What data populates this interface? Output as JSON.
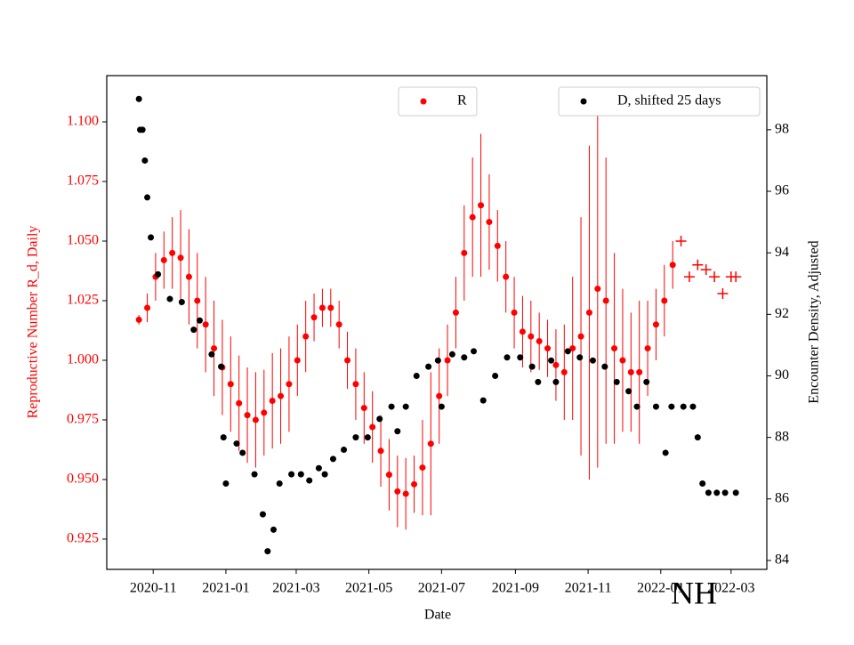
{
  "chart_data": {
    "type": "errorbar",
    "xlabel": "Date",
    "ylabel": "Reproductive Number R_d, Daily",
    "y2label": "Encounter Density, Adjusted",
    "annotation": "NH",
    "xlim": [
      "2020-09-23",
      "2022-03-31"
    ],
    "xticks": [
      {
        "value": "2020-11-01",
        "label": "2020-11"
      },
      {
        "value": "2021-01-01",
        "label": "2021-01"
      },
      {
        "value": "2021-03-01",
        "label": "2021-03"
      },
      {
        "value": "2021-05-01",
        "label": "2021-05"
      },
      {
        "value": "2021-07-01",
        "label": "2021-07"
      },
      {
        "value": "2021-09-01",
        "label": "2021-09"
      },
      {
        "value": "2021-11-01",
        "label": "2021-11"
      },
      {
        "value": "2022-01-01",
        "label": "2022-01"
      },
      {
        "value": "2022-03-01",
        "label": "2022-03"
      }
    ],
    "ylim": [
      0.9123,
      1.1194
    ],
    "yticks": [
      {
        "value": 0.925,
        "label": "0.925"
      },
      {
        "value": 0.95,
        "label": "0.950"
      },
      {
        "value": 0.975,
        "label": "0.975"
      },
      {
        "value": 1.0,
        "label": "1.000"
      },
      {
        "value": 1.025,
        "label": "1.025"
      },
      {
        "value": 1.05,
        "label": "1.050"
      },
      {
        "value": 1.075,
        "label": "1.075"
      },
      {
        "value": 1.1,
        "label": "1.100"
      }
    ],
    "y2lim": [
      83.71,
      99.76
    ],
    "y2ticks": [
      84,
      86,
      88,
      90,
      92,
      94,
      96,
      98
    ],
    "series": [
      {
        "name": "R",
        "color": "#ff0000",
        "marker": "dot",
        "x": [
          "2020-10-20",
          "2020-10-27",
          "2020-11-03",
          "2020-11-10",
          "2020-11-17",
          "2020-11-24",
          "2020-12-01",
          "2020-12-08",
          "2020-12-15",
          "2020-12-22",
          "2020-12-29",
          "2021-01-05",
          "2021-01-12",
          "2021-01-19",
          "2021-01-26",
          "2021-02-02",
          "2021-02-09",
          "2021-02-16",
          "2021-02-23",
          "2021-03-02",
          "2021-03-09",
          "2021-03-16",
          "2021-03-23",
          "2021-03-30",
          "2021-04-06",
          "2021-04-13",
          "2021-04-20",
          "2021-04-27",
          "2021-05-04",
          "2021-05-11",
          "2021-05-18",
          "2021-05-25",
          "2021-06-01",
          "2021-06-08",
          "2021-06-15",
          "2021-06-22",
          "2021-06-29",
          "2021-07-06",
          "2021-07-13",
          "2021-07-20",
          "2021-07-27",
          "2021-08-03",
          "2021-08-10",
          "2021-08-17",
          "2021-08-24",
          "2021-08-31",
          "2021-09-07",
          "2021-09-14",
          "2021-09-21",
          "2021-09-28",
          "2021-10-05",
          "2021-10-12",
          "2021-10-19",
          "2021-10-26",
          "2021-11-02",
          "2021-11-09",
          "2021-11-16",
          "2021-11-23",
          "2021-11-30",
          "2021-12-07",
          "2021-12-14",
          "2021-12-21",
          "2021-12-28",
          "2022-01-04",
          "2022-01-11"
        ],
        "values": [
          1.017,
          1.022,
          1.035,
          1.042,
          1.045,
          1.043,
          1.035,
          1.025,
          1.015,
          1.005,
          0.997,
          0.99,
          0.982,
          0.977,
          0.975,
          0.978,
          0.983,
          0.985,
          0.99,
          1.0,
          1.01,
          1.018,
          1.022,
          1.022,
          1.015,
          1.0,
          0.99,
          0.98,
          0.972,
          0.962,
          0.952,
          0.945,
          0.944,
          0.948,
          0.955,
          0.965,
          0.985,
          1.0,
          1.02,
          1.045,
          1.06,
          1.065,
          1.058,
          1.048,
          1.035,
          1.02,
          1.012,
          1.01,
          1.008,
          1.005,
          0.998,
          0.995,
          1.005,
          1.01,
          1.02,
          1.03,
          1.025,
          1.005,
          1.0,
          0.995,
          0.995,
          1.005,
          1.015,
          1.025,
          1.04
        ],
        "errors": [
          0.002,
          0.006,
          0.01,
          0.012,
          0.015,
          0.02,
          0.02,
          0.02,
          0.02,
          0.02,
          0.02,
          0.02,
          0.02,
          0.02,
          0.02,
          0.018,
          0.02,
          0.02,
          0.02,
          0.015,
          0.015,
          0.01,
          0.008,
          0.008,
          0.01,
          0.012,
          0.015,
          0.015,
          0.015,
          0.015,
          0.015,
          0.015,
          0.015,
          0.012,
          0.02,
          0.03,
          0.02,
          0.015,
          0.015,
          0.02,
          0.025,
          0.03,
          0.02,
          0.015,
          0.015,
          0.015,
          0.015,
          0.015,
          0.012,
          0.012,
          0.015,
          0.02,
          0.03,
          0.05,
          0.07,
          0.075,
          0.06,
          0.04,
          0.03,
          0.025,
          0.03,
          0.02,
          0.015,
          0.015,
          0.01
        ]
      },
      {
        "color": "#ff0000",
        "marker": "plus",
        "x": [
          "2022-01-18",
          "2022-01-25",
          "2022-02-01",
          "2022-02-08",
          "2022-02-15",
          "2022-02-22",
          "2022-03-01",
          "2022-03-05"
        ],
        "values": [
          1.05,
          1.035,
          1.04,
          1.038,
          1.035,
          1.028,
          1.035,
          1.035
        ]
      },
      {
        "name": "D, shifted 25 days",
        "color": "#000000",
        "marker": "dot",
        "axis": "y2",
        "x": [
          "2020-10-20",
          "2020-10-21",
          "2020-10-23",
          "2020-10-25",
          "2020-10-27",
          "2020-10-30",
          "2020-11-05",
          "2020-11-15",
          "2020-11-25",
          "2020-12-05",
          "2020-12-10",
          "2020-12-20",
          "2020-12-28",
          "2020-12-30",
          "2021-01-01",
          "2021-01-10",
          "2021-01-15",
          "2021-01-25",
          "2021-02-01",
          "2021-02-05",
          "2021-02-10",
          "2021-02-15",
          "2021-02-25",
          "2021-03-05",
          "2021-03-12",
          "2021-03-20",
          "2021-03-25",
          "2021-04-01",
          "2021-04-10",
          "2021-04-20",
          "2021-04-30",
          "2021-05-10",
          "2021-05-20",
          "2021-05-25",
          "2021-06-01",
          "2021-06-10",
          "2021-06-20",
          "2021-06-28",
          "2021-07-01",
          "2021-07-10",
          "2021-07-20",
          "2021-07-28",
          "2021-08-05",
          "2021-08-15",
          "2021-08-25",
          "2021-09-05",
          "2021-09-15",
          "2021-09-20",
          "2021-10-01",
          "2021-10-05",
          "2021-10-15",
          "2021-10-25",
          "2021-11-05",
          "2021-11-15",
          "2021-11-25",
          "2021-12-05",
          "2021-12-12",
          "2021-12-20",
          "2021-12-28",
          "2022-01-05",
          "2022-01-10",
          "2022-01-20",
          "2022-01-28",
          "2022-02-01",
          "2022-02-05",
          "2022-02-10",
          "2022-02-17",
          "2022-02-24",
          "2022-03-05"
        ],
        "values": [
          99,
          98,
          98,
          97,
          95.8,
          94.5,
          93.3,
          92.5,
          92.4,
          91.5,
          91.8,
          90.7,
          90.3,
          88,
          86.5,
          87.8,
          87.5,
          86.8,
          85.5,
          84.3,
          85,
          86.5,
          86.8,
          86.8,
          86.6,
          87,
          86.8,
          87.3,
          87.6,
          88,
          88,
          88.6,
          89,
          88.2,
          89,
          90,
          90.3,
          90.5,
          89,
          90.7,
          90.6,
          90.8,
          89.2,
          90,
          90.6,
          90.6,
          90.3,
          89.8,
          90.5,
          89.8,
          90.8,
          90.6,
          90.5,
          90.3,
          89.8,
          89.5,
          89,
          89.8,
          89,
          87.5,
          89,
          89,
          89,
          88,
          86.5,
          86.2,
          86.2,
          86.2,
          86.2
        ]
      }
    ]
  }
}
